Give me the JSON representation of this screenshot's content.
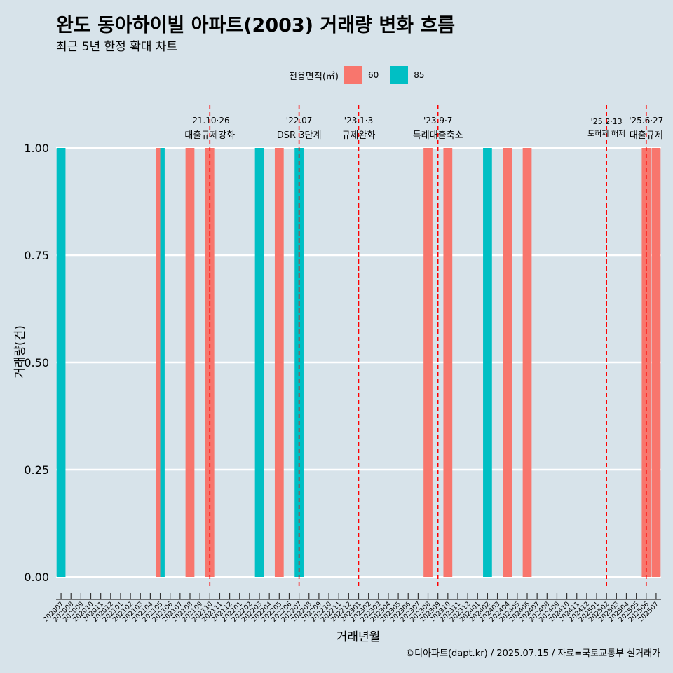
{
  "title": "완도 동아하이빌 아파트(2003) 거래량 변화 흐름",
  "subtitle": "최근 5년 한정 확대 차트",
  "caption": "©디아파트(dapt.kr) / 2025.07.15 / 자료=국토교통부 실거래가",
  "legend": {
    "title": "전용면적(㎡)",
    "items": [
      {
        "label": "60",
        "color": "#f8766d"
      },
      {
        "label": "85",
        "color": "#00bfc4"
      }
    ]
  },
  "chart_data": {
    "type": "bar",
    "xlabel": "거래년월",
    "ylabel": "거래량(건)",
    "ylim": [
      0,
      1
    ],
    "yticks": [
      "0.00",
      "0.25",
      "0.50",
      "0.75",
      "1.00"
    ],
    "grid": true,
    "legend_position": "top",
    "categories": [
      "202007",
      "202008",
      "202009",
      "202010",
      "202011",
      "202012",
      "202101",
      "202102",
      "202103",
      "202104",
      "202105",
      "202106",
      "202107",
      "202108",
      "202109",
      "202110",
      "202111",
      "202112",
      "202201",
      "202202",
      "202203",
      "202204",
      "202205",
      "202206",
      "202207",
      "202208",
      "202209",
      "202210",
      "202211",
      "202212",
      "202301",
      "202302",
      "202303",
      "202304",
      "202305",
      "202306",
      "202307",
      "202308",
      "202309",
      "202310",
      "202311",
      "202312",
      "202401",
      "202402",
      "202403",
      "202404",
      "202405",
      "202406",
      "202407",
      "202408",
      "202409",
      "202410",
      "202411",
      "202412",
      "202501",
      "202502",
      "202503",
      "202504",
      "202505",
      "202506",
      "202507"
    ],
    "series": [
      {
        "name": "60",
        "color": "#f8766d",
        "points": [
          {
            "x": "202105",
            "y": 1
          },
          {
            "x": "202108",
            "y": 1
          },
          {
            "x": "202110",
            "y": 1
          },
          {
            "x": "202205",
            "y": 1
          },
          {
            "x": "202308",
            "y": 1
          },
          {
            "x": "202310",
            "y": 1
          },
          {
            "x": "202404",
            "y": 1
          },
          {
            "x": "202406",
            "y": 1
          },
          {
            "x": "202506",
            "y": 1
          },
          {
            "x": "202507",
            "y": 1
          }
        ]
      },
      {
        "name": "85",
        "color": "#00bfc4",
        "points": [
          {
            "x": "202007",
            "y": 1
          },
          {
            "x": "202105",
            "y": 1
          },
          {
            "x": "202203",
            "y": 1
          },
          {
            "x": "202207",
            "y": 1
          },
          {
            "x": "202402",
            "y": 1
          }
        ]
      }
    ],
    "annotations": [
      {
        "x": "202110",
        "date": "'21.10·26",
        "text": "대출규제강화"
      },
      {
        "x": "202207",
        "date": "'22.07",
        "text": "DSR 3단계"
      },
      {
        "x": "202301",
        "date": "'23.1·3",
        "text": "규제완화"
      },
      {
        "x": "202309",
        "date": "'23.9·7",
        "text": "특례대출축소"
      },
      {
        "x": "202502",
        "date": "'25.2·13",
        "text": "토허제 해제"
      },
      {
        "x": "202506",
        "date": "'25.6·27",
        "text": "대출규제"
      }
    ],
    "annotation_color": "#ff0000"
  }
}
